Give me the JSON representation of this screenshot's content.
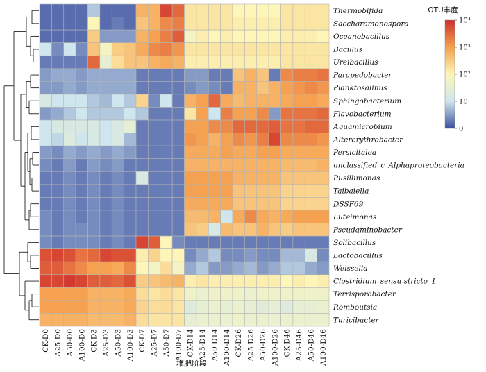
{
  "chart_data": {
    "type": "heatmap",
    "xlabel": "堆肥阶段",
    "legend": {
      "title": "OTU丰度",
      "tick_labels": [
        "0",
        "10",
        "10²",
        "10³",
        "10⁴"
      ],
      "colors": [
        "#3b4f9e",
        "#cfe6ee",
        "#fdf6b8",
        "#f5a150",
        "#cf2f2b"
      ]
    },
    "columns": [
      "CK-D0",
      "A25-D0",
      "A50-D0",
      "A100-D0",
      "CK-D3",
      "A25-D3",
      "A50-D3",
      "A100-D3",
      "CK-D7",
      "A25-D7",
      "A50-D7",
      "A100-D7",
      "CK-D14",
      "A25-D14",
      "A50-D14",
      "A100-D14",
      "CK-D26",
      "A25-D26",
      "A50-D26",
      "A100-D26",
      "CK-D46",
      "A25-D46",
      "A50-D46",
      "A100-D46"
    ],
    "rows": [
      "Thermobifida",
      "Saccharomonospora",
      "Oceanobacillus",
      "Bacillus",
      "Ureibacillus",
      "Parapedobacter",
      "Planktosalinus",
      "Sphingobacterium",
      "Flavobacterium",
      "Aquamicrobium",
      "Altererythrobacter",
      "Persicitalea",
      "unclassified_c_Alphaproteobacteria",
      "Pusillimonas",
      "Taibaiella",
      "DSSF69",
      "Luteimonas",
      "Pseudaminobacter",
      "Solibacillus",
      "Lactobacillus",
      "Weissella",
      "Clostridium_sensu stricto_1",
      "Terrisporobacter",
      "Romboutsia",
      "Turicibacter"
    ],
    "color_scale": "log10(OTU+1)",
    "values": [
      [
        0.2,
        0.2,
        0.2,
        0.2,
        0.8,
        0.2,
        0.2,
        0.2,
        2.8,
        2.8,
        3.8,
        3.5,
        2.2,
        2.2,
        2.2,
        2.2,
        2.0,
        2.0,
        2.0,
        2.0,
        2.2,
        2.2,
        2.2,
        2.2
      ],
      [
        0.2,
        0.2,
        0.2,
        0.2,
        2.0,
        0.2,
        0.3,
        0.2,
        2.6,
        2.8,
        3.2,
        3.3,
        2.2,
        2.2,
        2.2,
        2.2,
        2.1,
        2.1,
        2.1,
        2.1,
        2.2,
        2.2,
        2.2,
        2.2
      ],
      [
        0.2,
        0.2,
        0.2,
        0.2,
        2.5,
        0.5,
        0.5,
        0.5,
        2.8,
        3.0,
        3.3,
        3.6,
        1.8,
        2.1,
        2.0,
        2.1,
        2.0,
        2.0,
        2.0,
        2.0,
        2.1,
        2.1,
        2.1,
        2.0
      ],
      [
        1.0,
        0.4,
        1.0,
        0.4,
        2.6,
        1.8,
        2.5,
        2.6,
        2.9,
        3.2,
        3.3,
        3.1,
        2.2,
        2.2,
        2.2,
        2.2,
        2.2,
        2.2,
        2.2,
        2.2,
        2.2,
        2.2,
        2.2,
        2.2
      ],
      [
        0.3,
        0.3,
        0.3,
        0.3,
        3.5,
        1.5,
        2.3,
        2.6,
        2.6,
        2.8,
        2.9,
        2.8,
        2.1,
        2.1,
        2.1,
        2.1,
        2.1,
        2.1,
        2.1,
        2.1,
        2.2,
        2.2,
        2.2,
        2.2
      ],
      [
        0.5,
        0.6,
        0.6,
        0.5,
        0.6,
        0.6,
        0.6,
        0.6,
        0.3,
        0.3,
        0.3,
        0.3,
        0.5,
        0.5,
        0.3,
        0.3,
        2.6,
        2.8,
        2.6,
        0.3,
        3.2,
        3.3,
        3.3,
        3.4
      ],
      [
        0.5,
        0.5,
        0.6,
        0.5,
        0.6,
        0.6,
        0.6,
        0.6,
        0.3,
        0.3,
        0.3,
        0.3,
        0.4,
        0.5,
        0.4,
        0.3,
        2.8,
        2.8,
        2.6,
        2.8,
        3.0,
        3.1,
        3.2,
        3.1
      ],
      [
        1.2,
        1.0,
        1.0,
        1.0,
        0.8,
        0.7,
        1.0,
        0.8,
        2.4,
        0.4,
        1.0,
        0.3,
        2.8,
        3.0,
        3.5,
        2.9,
        2.7,
        2.8,
        2.8,
        2.8,
        2.9,
        3.0,
        3.0,
        2.9
      ],
      [
        0.5,
        0.6,
        0.8,
        1.0,
        0.8,
        0.8,
        0.8,
        1.0,
        0.8,
        0.3,
        0.3,
        0.3,
        2.2,
        3.0,
        1.0,
        3.3,
        3.0,
        3.0,
        3.2,
        0.5,
        3.4,
        3.4,
        3.4,
        3.5
      ],
      [
        1.0,
        1.2,
        1.2,
        1.2,
        1.2,
        1.0,
        1.2,
        1.5,
        0.3,
        0.3,
        0.3,
        0.3,
        3.0,
        3.0,
        3.2,
        3.2,
        3.5,
        3.5,
        3.5,
        3.6,
        3.4,
        3.4,
        3.5,
        3.5
      ],
      [
        1.0,
        0.9,
        1.3,
        1.0,
        1.2,
        1.0,
        1.2,
        0.7,
        0.3,
        0.3,
        0.3,
        0.3,
        3.1,
        3.0,
        2.8,
        3.0,
        3.2,
        3.1,
        3.3,
        3.8,
        3.2,
        3.2,
        3.2,
        3.1
      ],
      [
        0.5,
        0.4,
        0.6,
        0.5,
        0.6,
        0.5,
        0.6,
        0.5,
        0.3,
        0.3,
        0.3,
        0.3,
        2.9,
        2.9,
        2.9,
        3.0,
        2.9,
        2.9,
        3.0,
        3.0,
        2.9,
        2.9,
        2.9,
        2.9
      ],
      [
        0.4,
        0.3,
        0.5,
        0.3,
        0.5,
        0.4,
        0.5,
        0.3,
        0.3,
        0.3,
        0.3,
        0.3,
        2.8,
        2.8,
        2.8,
        2.8,
        2.8,
        2.8,
        2.8,
        2.8,
        2.7,
        2.7,
        2.7,
        2.8
      ],
      [
        0.3,
        0.3,
        0.4,
        0.3,
        0.4,
        0.3,
        0.4,
        0.3,
        1.2,
        0.3,
        0.3,
        0.3,
        3.0,
        3.0,
        3.0,
        3.0,
        2.8,
        2.8,
        2.8,
        2.8,
        2.6,
        2.6,
        2.6,
        2.6
      ],
      [
        0.3,
        0.3,
        0.4,
        0.3,
        0.4,
        0.3,
        0.4,
        0.3,
        0.3,
        0.3,
        0.3,
        0.3,
        3.0,
        3.0,
        3.0,
        3.0,
        2.6,
        2.6,
        2.6,
        2.6,
        2.4,
        2.4,
        2.4,
        2.4
      ],
      [
        0.3,
        0.3,
        0.4,
        0.3,
        0.4,
        0.3,
        0.4,
        0.3,
        0.3,
        0.3,
        0.3,
        0.3,
        2.9,
        2.9,
        2.9,
        2.9,
        2.6,
        2.6,
        2.6,
        2.6,
        2.4,
        2.4,
        2.4,
        2.4
      ],
      [
        0.4,
        0.3,
        0.4,
        0.3,
        0.4,
        0.3,
        0.4,
        0.3,
        0.3,
        0.3,
        0.3,
        0.3,
        2.7,
        2.7,
        2.8,
        1.0,
        2.9,
        3.2,
        2.9,
        2.8,
        2.9,
        3.0,
        3.0,
        3.0
      ],
      [
        0.4,
        0.3,
        0.4,
        0.4,
        0.4,
        0.3,
        0.4,
        0.3,
        0.3,
        0.3,
        0.3,
        0.3,
        2.6,
        2.5,
        1.2,
        2.7,
        2.6,
        2.6,
        2.8,
        2.6,
        2.5,
        2.6,
        2.6,
        2.6
      ],
      [
        0.4,
        0.3,
        0.4,
        0.4,
        0.4,
        0.3,
        0.4,
        0.3,
        3.8,
        3.6,
        2.0,
        0.4,
        0.3,
        0.3,
        0.3,
        0.3,
        0.3,
        0.3,
        0.3,
        0.3,
        0.3,
        0.3,
        0.3,
        0.3
      ],
      [
        3.7,
        3.8,
        3.7,
        3.4,
        3.5,
        3.8,
        3.7,
        3.7,
        2.1,
        2.4,
        2.0,
        2.0,
        0.4,
        0.6,
        0.8,
        0.4,
        0.4,
        0.5,
        0.4,
        0.4,
        0.7,
        0.7,
        1.2,
        0.4
      ],
      [
        3.6,
        3.6,
        3.4,
        3.2,
        3.0,
        3.0,
        2.9,
        3.2,
        2.0,
        1.8,
        2.3,
        1.8,
        0.6,
        0.8,
        0.5,
        0.5,
        0.6,
        0.7,
        0.5,
        0.6,
        0.8,
        0.8,
        0.6,
        0.5
      ],
      [
        3.8,
        3.8,
        3.9,
        3.8,
        3.6,
        3.6,
        3.5,
        3.7,
        2.5,
        2.6,
        2.7,
        2.8,
        2.1,
        2.2,
        2.1,
        2.1,
        2.1,
        2.1,
        2.1,
        2.1,
        2.0,
        2.1,
        2.0,
        2.1
      ],
      [
        3.0,
        3.0,
        3.0,
        3.0,
        2.8,
        2.8,
        2.8,
        2.9,
        2.3,
        2.2,
        2.3,
        2.2,
        1.7,
        1.6,
        1.7,
        1.7,
        1.7,
        1.6,
        1.7,
        1.7,
        1.7,
        1.7,
        1.7,
        1.7
      ],
      [
        3.0,
        3.0,
        3.0,
        3.0,
        2.8,
        2.8,
        2.8,
        2.9,
        2.4,
        2.3,
        2.3,
        2.2,
        1.3,
        1.5,
        1.6,
        1.5,
        1.6,
        1.5,
        1.4,
        1.5,
        1.3,
        1.5,
        1.5,
        1.6
      ],
      [
        2.8,
        2.8,
        2.8,
        2.8,
        2.7,
        2.7,
        2.7,
        2.8,
        2.3,
        2.2,
        2.2,
        2.2,
        1.5,
        1.6,
        1.6,
        1.6,
        1.7,
        1.6,
        1.6,
        1.6,
        1.6,
        1.6,
        1.6,
        1.6
      ]
    ]
  }
}
